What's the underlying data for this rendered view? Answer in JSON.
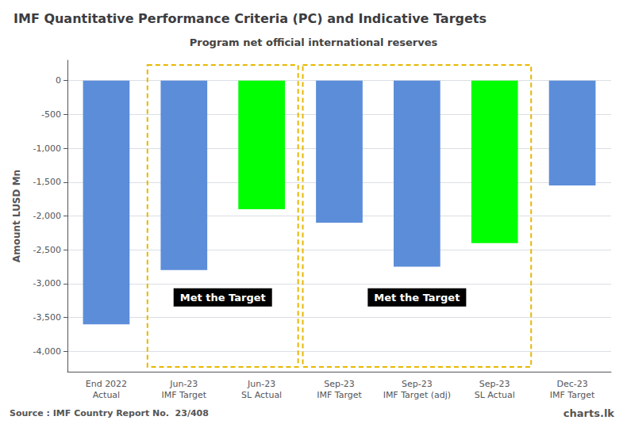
{
  "chart_data": {
    "type": "bar",
    "title": "IMF Quantitative Performance Criteria (PC) and Indicative Targets",
    "subtitle": "Program net official international reserves",
    "categories": [
      "End 2022\nActual",
      "Jun-23\nIMF Target",
      "Jun-23\nSL Actual",
      "Sep-23\nIMF Target",
      "Sep-23\nIMF Target (adj)",
      "Sep-23\nSL Actual",
      "Dec-23\nIMF Target"
    ],
    "values": [
      -3600,
      -2800,
      -1900,
      -2100,
      -2750,
      -2400,
      -1550
    ],
    "colors": [
      "#5b8dd9",
      "#5b8dd9",
      "#00ff00",
      "#5b8dd9",
      "#5b8dd9",
      "#00ff00",
      "#5b8dd9"
    ],
    "ylabel": "Amount LUSD Mn",
    "ylim": [
      -4300,
      300
    ],
    "yticks": [
      0,
      -500,
      {
        "value": -1000,
        "label": "-1,000"
      },
      {
        "value": -1500,
        "label": "-1,500"
      },
      {
        "value": -2000,
        "label": "-2,000"
      },
      {
        "value": -2500,
        "label": "-2,500"
      },
      {
        "value": -3000,
        "label": "-3,000"
      },
      {
        "value": -3500,
        "label": "-3,500"
      },
      {
        "value": -4000,
        "label": "-4,000"
      }
    ],
    "grid": true,
    "annotations": [
      {
        "text": "Met the Target",
        "span": [
          "Jun-23\nIMF Target",
          "Jun-23\nSL Actual"
        ]
      },
      {
        "text": "Met the Target",
        "span": [
          "Sep-23\nIMF Target",
          "Sep-23\nSL Actual"
        ]
      }
    ],
    "source": "Source : IMF Country Report No.  23/408",
    "credit": "charts.lk"
  }
}
